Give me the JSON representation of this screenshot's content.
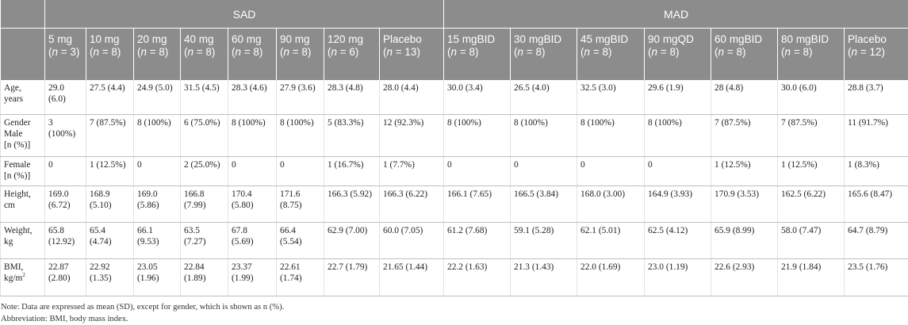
{
  "groups": {
    "blank": "",
    "sad": "SAD",
    "mad": "MAD"
  },
  "columns": [
    {
      "dose": "5 mg",
      "n": "3"
    },
    {
      "dose": "10 mg",
      "n": "8"
    },
    {
      "dose": "20 mg",
      "n": "8"
    },
    {
      "dose": "40 mg",
      "n": "8"
    },
    {
      "dose": "60 mg",
      "n": "8"
    },
    {
      "dose": "90 mg",
      "n": "8"
    },
    {
      "dose": "120 mg",
      "n": "6"
    },
    {
      "dose": "Placebo",
      "n": "13"
    },
    {
      "dose": "15 mgBID",
      "n": "8"
    },
    {
      "dose": "30 mgBID",
      "n": "8"
    },
    {
      "dose": "45 mgBID",
      "n": "8"
    },
    {
      "dose": "90 mgQD",
      "n": "8"
    },
    {
      "dose": "60 mgBID",
      "n": "8"
    },
    {
      "dose": "80 mgBID",
      "n": "8"
    },
    {
      "dose": "Placebo",
      "n": "12"
    }
  ],
  "rows": [
    {
      "label": [
        "Age,",
        "years"
      ],
      "cells": [
        [
          "29.0",
          "(6.0)"
        ],
        [
          "27.5 (4.4)"
        ],
        [
          "24.9 (5.0)"
        ],
        [
          "31.5 (4.5)"
        ],
        [
          "28.3 (4.6)"
        ],
        [
          "27.9 (3.6)"
        ],
        [
          "28.3 (4.8)"
        ],
        [
          "28.0 (4.4)"
        ],
        [
          "30.0 (3.4)"
        ],
        [
          "26.5 (4.0)"
        ],
        [
          "32.5 (3.0)"
        ],
        [
          "29.6 (1.9)"
        ],
        [
          "28 (4.8)"
        ],
        [
          "30.0 (6.0)"
        ],
        [
          "28.8 (3.7)"
        ]
      ]
    },
    {
      "label": [
        "Gender",
        "Male",
        "[n (%)]"
      ],
      "cells": [
        [
          "3",
          "(100%)"
        ],
        [
          "7 (87.5%)"
        ],
        [
          "8 (100%)"
        ],
        [
          "6 (75.0%)"
        ],
        [
          "8 (100%)"
        ],
        [
          "8 (100%)"
        ],
        [
          "5 (83.3%)"
        ],
        [
          "12 (92.3%)"
        ],
        [
          "8 (100%)"
        ],
        [
          "8 (100%)"
        ],
        [
          "8 (100%)"
        ],
        [
          "8 (100%)"
        ],
        [
          "7 (87.5%)"
        ],
        [
          "7 (87.5%)"
        ],
        [
          "11 (91.7%)"
        ]
      ]
    },
    {
      "label": [
        "Female",
        "[n (%)]"
      ],
      "cells": [
        [
          "0"
        ],
        [
          "1 (12.5%)"
        ],
        [
          "0"
        ],
        [
          "2 (25.0%)"
        ],
        [
          "0"
        ],
        [
          "0"
        ],
        [
          "1 (16.7%)"
        ],
        [
          "1 (7.7%)"
        ],
        [
          "0"
        ],
        [
          "0"
        ],
        [
          "0"
        ],
        [
          "0"
        ],
        [
          "1 (12.5%)"
        ],
        [
          "1 (12.5%)"
        ],
        [
          "1 (8.3%)"
        ]
      ]
    },
    {
      "label": [
        "Height,",
        "cm"
      ],
      "cells": [
        [
          "169.0",
          "(6.72)"
        ],
        [
          "168.9",
          "(5.10)"
        ],
        [
          "169.0",
          "(5.86)"
        ],
        [
          "166.8",
          "(7.99)"
        ],
        [
          "170.4",
          "(5.80)"
        ],
        [
          "171.6",
          "(8.75)"
        ],
        [
          "166.3 (5.92)"
        ],
        [
          "166.3 (6.22)"
        ],
        [
          "166.1 (7.65)"
        ],
        [
          "166.5 (3.84)"
        ],
        [
          "168.0 (3.00)"
        ],
        [
          "164.9 (3.93)"
        ],
        [
          "170.9 (3.53)"
        ],
        [
          "162.5 (6.22)"
        ],
        [
          "165.6 (8.47)"
        ]
      ]
    },
    {
      "label": [
        "Weight,",
        "kg"
      ],
      "cells": [
        [
          "65.8",
          "(12.92)"
        ],
        [
          "65.4",
          "(4.74)"
        ],
        [
          "66.1",
          "(9.53)"
        ],
        [
          "63.5",
          "(7.27)"
        ],
        [
          "67.8",
          "(5.69)"
        ],
        [
          "66.4",
          "(5.54)"
        ],
        [
          "62.9 (7.00)"
        ],
        [
          "60.0 (7.05)"
        ],
        [
          "61.2 (7.68)"
        ],
        [
          "59.1 (5.28)"
        ],
        [
          "62.1 (5.01)"
        ],
        [
          "62.5 (4.12)"
        ],
        [
          "65.9 (8.99)"
        ],
        [
          "58.0 (7.47)"
        ],
        [
          "64.7 (8.79)"
        ]
      ]
    },
    {
      "label": [
        "BMI,",
        "kg/m",
        "2"
      ],
      "cells": [
        [
          "22.87",
          "(2.80)"
        ],
        [
          "22.92",
          "(1.35)"
        ],
        [
          "23.05",
          "(1.96)"
        ],
        [
          "22.84",
          "(1.89)"
        ],
        [
          "23.37",
          "(1.99)"
        ],
        [
          "22.61",
          "(1.74)"
        ],
        [
          "22.7 (1.79)"
        ],
        [
          "21.65 (1.44)"
        ],
        [
          "22.2 (1.63)"
        ],
        [
          "21.3 (1.43)"
        ],
        [
          "22.0 (1.69)"
        ],
        [
          "23.0 (1.19)"
        ],
        [
          "22.6 (2.93)"
        ],
        [
          "21.9 (1.84)"
        ],
        [
          "23.5 (1.76)"
        ]
      ]
    }
  ],
  "n_prefix": "(",
  "n_var": "n",
  "n_eq": " = ",
  "n_suffix": ")",
  "notes": {
    "note": "Note: Data are expressed as mean (SD), except for gender, which is shown as n (%).",
    "abbreviation": "Abbreviation: BMI, body mass index."
  }
}
